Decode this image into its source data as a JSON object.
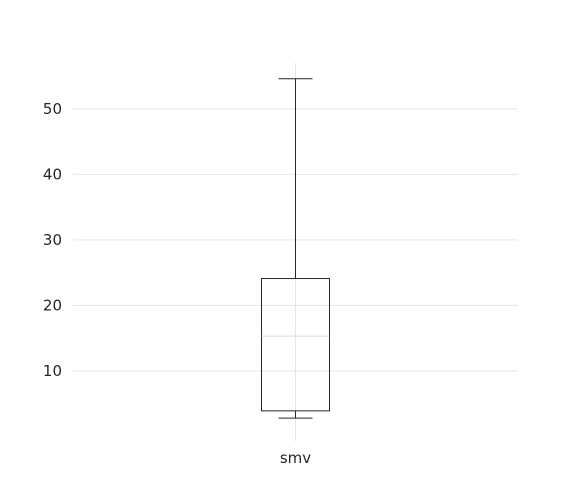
{
  "chart_data": {
    "type": "box",
    "categories": [
      "smv"
    ],
    "series": [
      {
        "whisker_low": 2.8,
        "q1": 3.9,
        "median": 15.3,
        "q3": 24.1,
        "whisker_high": 54.6
      }
    ],
    "y_ticks": [
      10,
      20,
      30,
      40,
      50
    ],
    "ylim": [
      -0.7,
      57.0
    ],
    "grid": true,
    "title": "",
    "xlabel": "",
    "ylabel": ""
  }
}
